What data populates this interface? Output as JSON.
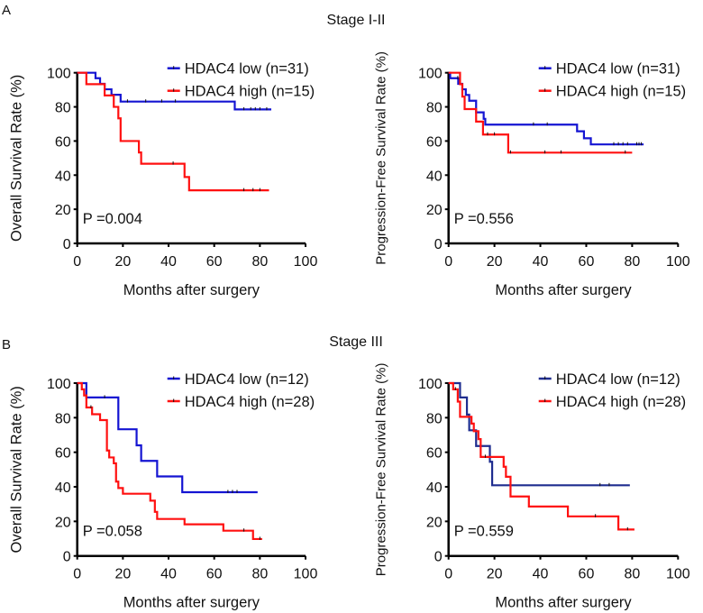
{
  "figure": {
    "panel_a_letter": "A",
    "panel_a_title": "Stage I-II",
    "panel_b_letter": "B",
    "panel_b_title": "Stage III"
  },
  "colors": {
    "low": "#1414d2",
    "low_alt": "#1f2d8f",
    "high": "#ff1010",
    "axis": "#000000"
  },
  "chart_data": [
    {
      "type": "line",
      "subtype": "kaplan-meier",
      "panel": "A",
      "ylabel": "Overall Survival Rate (%)",
      "xlabel": "Months after surgery",
      "xlim": [
        0,
        100
      ],
      "ylim": [
        0,
        100
      ],
      "xticks": [
        "0",
        "20",
        "40",
        "60",
        "80",
        "100"
      ],
      "yticks": [
        "0",
        "20",
        "40",
        "60",
        "80",
        "100"
      ],
      "pvalue": "P =0.004",
      "series": [
        {
          "name": "HDAC4 low (n=31)",
          "color_key": "low",
          "steps": [
            [
              0,
              100
            ],
            [
              8,
              96.8
            ],
            [
              10,
              93.5
            ],
            [
              12,
              90.3
            ],
            [
              15,
              87.1
            ],
            [
              19,
              83.1
            ],
            [
              69,
              78.5
            ]
          ],
          "censored": [
            22,
            30,
            37,
            43,
            73,
            76,
            78,
            80,
            83
          ],
          "end": 85
        },
        {
          "name": "HDAC4 high (n=15)",
          "color_key": "high",
          "steps": [
            [
              0,
              100
            ],
            [
              4,
              93.3
            ],
            [
              12,
              86.7
            ],
            [
              16,
              80
            ],
            [
              18,
              73.3
            ],
            [
              19,
              60
            ],
            [
              27,
              53.3
            ],
            [
              28,
              46.7
            ],
            [
              47,
              38.9
            ],
            [
              49,
              31.1
            ]
          ],
          "censored": [
            42,
            73,
            77,
            80
          ],
          "end": 84
        }
      ]
    },
    {
      "type": "line",
      "subtype": "kaplan-meier",
      "panel": "A",
      "ylabel": "Progression-Free Survival Rate (%)",
      "xlabel": "Months after surgery",
      "xlim": [
        0,
        100
      ],
      "ylim": [
        0,
        100
      ],
      "xticks": [
        "0",
        "20",
        "40",
        "60",
        "80",
        "100"
      ],
      "yticks": [
        "0",
        "20",
        "40",
        "60",
        "80",
        "100"
      ],
      "pvalue": "P =0.556",
      "series": [
        {
          "name": "HDAC4 low (n=31)",
          "color_key": "low",
          "steps": [
            [
              0,
              100
            ],
            [
              0.7,
              96.8
            ],
            [
              4.2,
              93.5
            ],
            [
              6,
              90.3
            ],
            [
              7.5,
              87
            ],
            [
              9,
              83.6
            ],
            [
              12,
              76.8
            ],
            [
              15.3,
              73
            ],
            [
              16,
              69.6
            ],
            [
              56,
              65.7
            ],
            [
              59,
              61.6
            ],
            [
              62,
              58
            ]
          ],
          "censored": [
            4,
            37,
            43,
            72,
            74,
            76,
            78,
            82,
            83,
            84
          ],
          "end": 85
        },
        {
          "name": "HDAC4 high (n=15)",
          "color_key": "high",
          "steps": [
            [
              0,
              100
            ],
            [
              5,
              93.3
            ],
            [
              6,
              86
            ],
            [
              7,
              78.7
            ],
            [
              12,
              71.4
            ],
            [
              15,
              63.8
            ],
            [
              26,
              53.2
            ]
          ],
          "censored": [
            17,
            20,
            27,
            42,
            49,
            77
          ],
          "end": 80
        }
      ]
    },
    {
      "type": "line",
      "subtype": "kaplan-meier",
      "panel": "B",
      "ylabel": "Overall Survival Rate (%)",
      "xlabel": "Months after surgery",
      "xlim": [
        0,
        100
      ],
      "ylim": [
        0,
        100
      ],
      "xticks": [
        "0",
        "20",
        "40",
        "60",
        "80",
        "100"
      ],
      "yticks": [
        "0",
        "20",
        "40",
        "60",
        "80",
        "100"
      ],
      "pvalue": "P =0.058",
      "series": [
        {
          "name": "HDAC4 low (n=12)",
          "color_key": "low",
          "steps": [
            [
              0,
              100
            ],
            [
              4,
              91.7
            ],
            [
              18,
              73.3
            ],
            [
              26,
              64
            ],
            [
              28,
              55
            ],
            [
              35,
              46
            ],
            [
              46,
              36.9
            ]
          ],
          "censored": [
            12,
            66,
            68,
            70
          ],
          "end": 79
        },
        {
          "name": "HDAC4 high (n=28)",
          "color_key": "high",
          "steps": [
            [
              0,
              100
            ],
            [
              2,
              96.4
            ],
            [
              3,
              92.9
            ],
            [
              4,
              85.9
            ],
            [
              6.5,
              82
            ],
            [
              10,
              78.6
            ],
            [
              13,
              61
            ],
            [
              14,
              57
            ],
            [
              16,
              53.6
            ],
            [
              17,
              43
            ],
            [
              18,
              39.3
            ],
            [
              20,
              36
            ],
            [
              32,
              32
            ],
            [
              34,
              25.5
            ],
            [
              35,
              21.4
            ],
            [
              47,
              18.3
            ],
            [
              64,
              14.6
            ],
            [
              77,
              9.8
            ]
          ],
          "censored": [
            6,
            73,
            80
          ],
          "end": 81
        }
      ]
    },
    {
      "type": "line",
      "subtype": "kaplan-meier",
      "panel": "B",
      "ylabel": "Progression-Free Survival Rate (%)",
      "xlabel": "Months after surgery",
      "xlim": [
        0,
        100
      ],
      "ylim": [
        0,
        100
      ],
      "xticks": [
        "0",
        "20",
        "40",
        "60",
        "80",
        "100"
      ],
      "yticks": [
        "0",
        "20",
        "40",
        "60",
        "80",
        "100"
      ],
      "pvalue": "P =0.559",
      "series": [
        {
          "name": "HDAC4 low (n=12)",
          "color_key": "low_alt",
          "steps": [
            [
              0,
              100
            ],
            [
              5,
              91.7
            ],
            [
              8,
              81.8
            ],
            [
              9,
              72.7
            ],
            [
              12,
              63.6
            ],
            [
              18,
              54.5
            ],
            [
              19,
              40.9
            ]
          ],
          "censored": [
            66,
            70
          ],
          "end": 79
        },
        {
          "name": "HDAC4 high (n=28)",
          "color_key": "high",
          "steps": [
            [
              0,
              100
            ],
            [
              2,
              96.4
            ],
            [
              4,
              89.3
            ],
            [
              5,
              80.5
            ],
            [
              10,
              76.6
            ],
            [
              11,
              72.2
            ],
            [
              13,
              67.6
            ],
            [
              14,
              57.3
            ],
            [
              24,
              51.6
            ],
            [
              25,
              45.8
            ],
            [
              27,
              34.4
            ],
            [
              35,
              28.6
            ],
            [
              52,
              22.9
            ],
            [
              74,
              15.3
            ]
          ],
          "censored": [
            3,
            16,
            64,
            78
          ],
          "end": 81
        }
      ]
    }
  ]
}
